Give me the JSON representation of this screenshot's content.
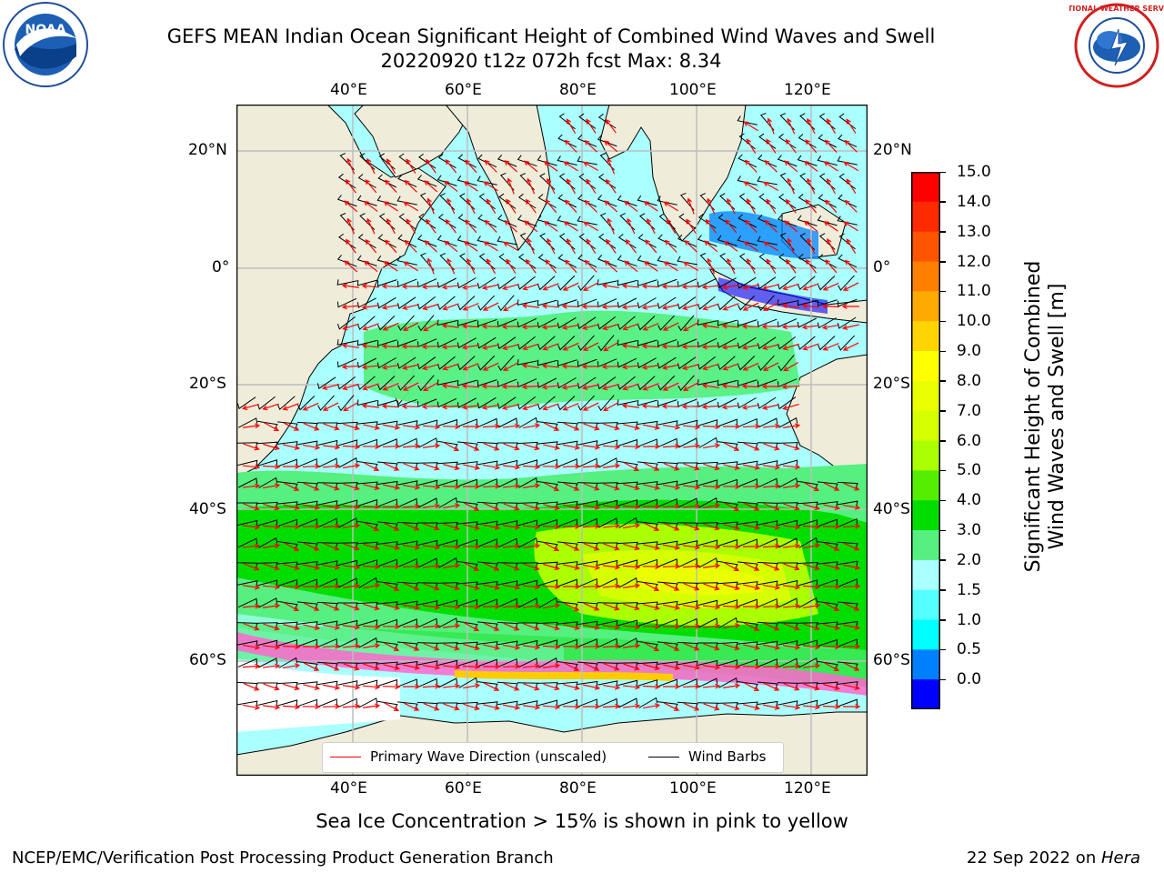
{
  "title": {
    "line1": "GEFS MEAN Indian Ocean Significant Height of Combined Wind Waves and Swell",
    "line2": "20220920 t12z 072h fcst   Max: 8.34"
  },
  "logos": {
    "left": {
      "name": "noaa-logo",
      "text": "NOAA",
      "ring_text": "NATIONAL OCEANIC AND ATMOSPHERIC ADMINISTRATION · U.S. DEPARTMENT OF COMMERCE"
    },
    "right": {
      "name": "nws-logo",
      "ring_text": "NATIONAL WEATHER SERVICE"
    }
  },
  "map": {
    "lon_ticks": [
      "40°E",
      "60°E",
      "80°E",
      "100°E",
      "120°E"
    ],
    "lat_ticks_left": [
      "20°N",
      "0°",
      "20°S",
      "40°S",
      "60°S"
    ],
    "lat_ticks_right": [
      "20°N",
      "0°",
      "20°S",
      "40°S",
      "60°S"
    ],
    "colors": {
      "land": "#efedda",
      "ocean_base": "#aaffff",
      "grid": "#bdbdbd",
      "wave_arrow": "#ff0000",
      "wind_barb": "#000000"
    }
  },
  "legend": {
    "items": [
      {
        "label": "Primary Wave Direction (unscaled)",
        "color": "#ff0000"
      },
      {
        "label": "Wind Barbs",
        "color": "#000000"
      }
    ]
  },
  "colorbar": {
    "label_line1": "Significant Height of Combined",
    "label_line2": "Wind Waves and Swell [m]",
    "ticks": [
      "15.0",
      "14.0",
      "13.0",
      "12.0",
      "11.0",
      "10.0",
      "9.0",
      "8.0",
      "7.0",
      "6.0",
      "5.0",
      "4.0",
      "3.0",
      "2.0",
      "1.5",
      "1.0",
      "0.5",
      "0.0"
    ],
    "segments": [
      "#ff0000",
      "#ff2a00",
      "#ff5500",
      "#ff8000",
      "#ffaa00",
      "#ffd400",
      "#ffff00",
      "#eaff00",
      "#d5ff00",
      "#aaff00",
      "#55ee00",
      "#00dd00",
      "#55f080",
      "#aaffff",
      "#55ffff",
      "#00ffff",
      "#0080ff",
      "#0000ff"
    ]
  },
  "caption": "Sea Ice Concentration > 15% is shown in pink to yellow",
  "footer": {
    "left": "NCEP/EMC/Verification Post Processing Product Generation Branch",
    "right_date": "22 Sep 2022 on ",
    "right_host": "Hera"
  }
}
